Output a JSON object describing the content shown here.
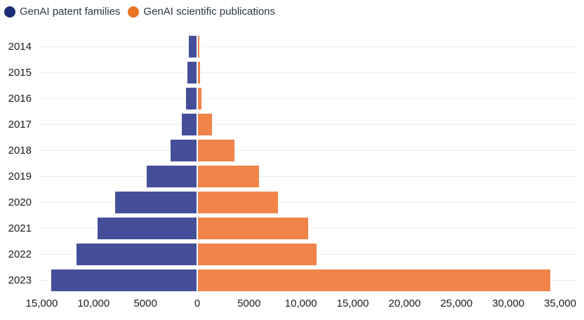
{
  "legend": {
    "items": [
      {
        "label": "GenAI patent families",
        "dot_color": "#1c2b75"
      },
      {
        "label": "GenAI scientific publications",
        "dot_color": "#ed7324"
      }
    ]
  },
  "colors": {
    "patents_bar": "#454f99",
    "publications_bar": "#f08449",
    "gridline": "#ededed",
    "axis_text": "#1c1c1c",
    "legend_text": "#2b3648"
  },
  "chart_data": {
    "type": "bar",
    "subtype": "diverging-horizontal-pyramid",
    "categories": [
      "2014",
      "2015",
      "2016",
      "2017",
      "2018",
      "2019",
      "2020",
      "2021",
      "2022",
      "2023"
    ],
    "series": [
      {
        "name": "GenAI patent families",
        "side": "left",
        "color": "#454f99",
        "values": [
          730,
          870,
          1020,
          1430,
          2500,
          4800,
          7850,
          9550,
          11600,
          14000
        ]
      },
      {
        "name": "GenAI scientific publications",
        "side": "right",
        "color": "#f08449",
        "values": [
          140,
          200,
          340,
          1350,
          3500,
          5900,
          7750,
          10600,
          11450,
          34000
        ]
      }
    ],
    "title": "",
    "xlabel": "",
    "ylabel": "",
    "x_axis": {
      "tick_values": [
        -15000,
        -10000,
        -5000,
        0,
        5000,
        10000,
        15000,
        20000,
        25000,
        30000,
        35000
      ],
      "tick_labels": [
        "15,000",
        "10,000",
        "5000",
        "0",
        "5000",
        "10,000",
        "15,000",
        "20,000",
        "25,000",
        "30,000",
        "35,000"
      ],
      "range": [
        -15500,
        36500
      ],
      "note": "left side shows patent families magnitude, right side publications"
    },
    "grid": "horizontal-category-lines",
    "legend_position": "top-left"
  }
}
